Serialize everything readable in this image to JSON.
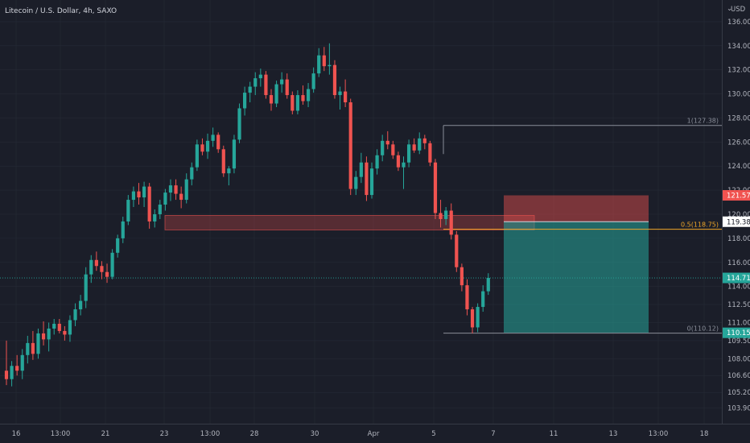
{
  "header": {
    "title": "Litecoin / U.S. Dollar, 4h, SAXO"
  },
  "axis": {
    "currency": "USD"
  },
  "chart_data": {
    "type": "candlestick",
    "y_range": [
      102.6,
      137.8
    ],
    "y_ticks": [
      "136.00",
      "134.00",
      "132.00",
      "130.00",
      "128.00",
      "126.00",
      "124.00",
      "122.00",
      "120.00",
      "118.00",
      "116.00",
      "114.00",
      "112.50",
      "111.00",
      "109.50",
      "108.00",
      "106.60",
      "105.20",
      "103.90"
    ],
    "x_ticks": [
      "16",
      "13:00",
      "21",
      "23",
      "13:00",
      "28",
      "30",
      "Apr",
      "5",
      "7",
      "11",
      "13",
      "13:00",
      "18"
    ],
    "candles_ohlc": [
      [
        107.0,
        109.5,
        105.8,
        106.3
      ],
      [
        106.3,
        107.8,
        105.7,
        107.4
      ],
      [
        107.4,
        108.3,
        106.6,
        107.0
      ],
      [
        107.0,
        108.8,
        106.3,
        108.3
      ],
      [
        108.3,
        109.9,
        107.6,
        109.3
      ],
      [
        109.3,
        110.3,
        107.9,
        108.4
      ],
      [
        108.4,
        110.5,
        108.0,
        110.1
      ],
      [
        110.1,
        111.1,
        109.1,
        109.6
      ],
      [
        109.6,
        111.0,
        108.6,
        110.5
      ],
      [
        110.5,
        111.3,
        110.0,
        110.9
      ],
      [
        110.9,
        111.3,
        110.1,
        110.3
      ],
      [
        110.3,
        110.7,
        109.5,
        110.0
      ],
      [
        110.0,
        111.6,
        109.4,
        111.2
      ],
      [
        111.2,
        112.6,
        110.7,
        112.1
      ],
      [
        112.1,
        113.3,
        111.6,
        112.8
      ],
      [
        112.8,
        115.6,
        112.2,
        115.0
      ],
      [
        115.0,
        116.6,
        114.3,
        116.2
      ],
      [
        116.2,
        116.9,
        115.3,
        115.7
      ],
      [
        115.7,
        116.1,
        114.6,
        115.2
      ],
      [
        115.2,
        115.9,
        114.3,
        114.8
      ],
      [
        114.8,
        117.1,
        114.6,
        116.8
      ],
      [
        116.8,
        118.3,
        116.4,
        118.0
      ],
      [
        118.0,
        119.8,
        117.6,
        119.4
      ],
      [
        119.4,
        121.6,
        119.1,
        121.2
      ],
      [
        121.2,
        122.3,
        120.6,
        121.9
      ],
      [
        121.9,
        122.6,
        120.8,
        121.4
      ],
      [
        121.4,
        122.7,
        120.6,
        122.3
      ],
      [
        122.3,
        122.6,
        118.8,
        119.4
      ],
      [
        119.4,
        120.4,
        118.9,
        120.0
      ],
      [
        120.0,
        121.2,
        119.6,
        120.8
      ],
      [
        120.8,
        122.1,
        120.3,
        121.8
      ],
      [
        121.8,
        122.9,
        121.1,
        122.4
      ],
      [
        122.4,
        122.9,
        121.2,
        121.7
      ],
      [
        121.7,
        122.3,
        120.5,
        121.2
      ],
      [
        121.2,
        123.4,
        120.9,
        122.9
      ],
      [
        122.9,
        124.3,
        122.4,
        123.9
      ],
      [
        123.9,
        126.2,
        123.6,
        125.8
      ],
      [
        125.8,
        126.3,
        124.9,
        125.2
      ],
      [
        125.2,
        126.7,
        124.6,
        126.1
      ],
      [
        126.1,
        127.2,
        125.6,
        126.6
      ],
      [
        126.6,
        126.8,
        125.1,
        125.4
      ],
      [
        125.4,
        125.7,
        123.1,
        123.4
      ],
      [
        123.4,
        124.0,
        122.4,
        123.8
      ],
      [
        123.8,
        126.6,
        123.4,
        126.2
      ],
      [
        126.2,
        129.2,
        125.9,
        128.8
      ],
      [
        128.8,
        130.6,
        128.2,
        130.1
      ],
      [
        130.1,
        131.0,
        129.3,
        130.6
      ],
      [
        130.6,
        131.8,
        129.9,
        131.3
      ],
      [
        131.3,
        132.1,
        130.6,
        131.6
      ],
      [
        131.6,
        131.9,
        129.6,
        129.9
      ],
      [
        129.9,
        130.4,
        128.6,
        129.2
      ],
      [
        129.2,
        131.1,
        128.9,
        130.8
      ],
      [
        130.8,
        131.8,
        130.1,
        131.2
      ],
      [
        131.2,
        131.7,
        129.6,
        129.9
      ],
      [
        129.9,
        130.2,
        128.3,
        128.6
      ],
      [
        128.6,
        130.3,
        128.3,
        129.9
      ],
      [
        129.9,
        130.7,
        129.1,
        129.4
      ],
      [
        129.4,
        130.9,
        128.9,
        130.4
      ],
      [
        130.4,
        132.2,
        130.1,
        131.7
      ],
      [
        131.7,
        133.8,
        131.4,
        133.2
      ],
      [
        133.2,
        133.9,
        131.9,
        132.3
      ],
      [
        132.3,
        134.2,
        131.6,
        132.4
      ],
      [
        132.4,
        132.8,
        129.6,
        129.9
      ],
      [
        129.9,
        130.6,
        128.7,
        130.2
      ],
      [
        130.2,
        131.2,
        128.9,
        129.3
      ],
      [
        129.3,
        129.6,
        121.6,
        122.1
      ],
      [
        122.1,
        123.6,
        121.6,
        123.1
      ],
      [
        123.1,
        125.1,
        122.6,
        124.3
      ],
      [
        124.3,
        124.8,
        121.1,
        121.6
      ],
      [
        121.6,
        124.3,
        121.3,
        123.8
      ],
      [
        123.8,
        125.4,
        123.3,
        124.9
      ],
      [
        124.9,
        126.6,
        124.4,
        126.1
      ],
      [
        126.1,
        126.9,
        125.4,
        125.8
      ],
      [
        125.8,
        126.1,
        124.6,
        124.9
      ],
      [
        124.9,
        125.2,
        123.6,
        123.9
      ],
      [
        123.9,
        124.8,
        122.1,
        124.3
      ],
      [
        124.3,
        126.2,
        123.9,
        125.8
      ],
      [
        125.8,
        126.3,
        125.1,
        125.3
      ],
      [
        125.3,
        126.8,
        125.0,
        126.3
      ],
      [
        126.3,
        126.6,
        125.4,
        125.9
      ],
      [
        125.9,
        126.1,
        124.0,
        124.3
      ],
      [
        124.3,
        124.6,
        119.6,
        120.1
      ],
      [
        120.1,
        121.2,
        118.9,
        119.6
      ],
      [
        119.6,
        120.6,
        119.1,
        120.3
      ],
      [
        120.3,
        120.9,
        117.9,
        118.3
      ],
      [
        118.3,
        118.6,
        115.2,
        115.6
      ],
      [
        115.6,
        115.9,
        113.6,
        114.1
      ],
      [
        114.1,
        114.6,
        111.6,
        112.1
      ],
      [
        112.1,
        112.3,
        110.1,
        110.6
      ],
      [
        110.6,
        112.6,
        110.2,
        112.3
      ],
      [
        112.3,
        114.1,
        111.9,
        113.6
      ],
      [
        113.6,
        115.1,
        113.3,
        114.71
      ]
    ],
    "horizontal_lines": [
      {
        "label": "1(127.38)",
        "value": 127.38,
        "color": "#8a8e99"
      },
      {
        "label": "0.5(118.75)",
        "value": 118.75,
        "color": "#f0a628"
      },
      {
        "label": "0(110.12)",
        "value": 110.12,
        "color": "#8a8e99"
      },
      {
        "label": "",
        "value": 114.71,
        "color": "#26a69a"
      }
    ],
    "supply_zone": {
      "top": 119.9,
      "bottom": 118.7
    },
    "position": {
      "stop": 121.57,
      "entry": 119.38,
      "target": 110.15
    },
    "price_badges": [
      {
        "label": "121.57",
        "value": 121.57,
        "bg": "#f05350",
        "fg": "#ffffff"
      },
      {
        "label": "119.38",
        "value": 119.38,
        "bg": "#ffffff",
        "fg": "#131722"
      },
      {
        "label": "114.71",
        "value": 114.71,
        "bg": "#26a69a",
        "fg": "#ffffff"
      },
      {
        "label": "110.15",
        "value": 110.15,
        "bg": "#26a69a",
        "fg": "#ffffff"
      }
    ],
    "colors": {
      "up": "#26a69a",
      "down": "#ef5350",
      "background": "#1b1e29",
      "grid": "#262a36"
    }
  }
}
